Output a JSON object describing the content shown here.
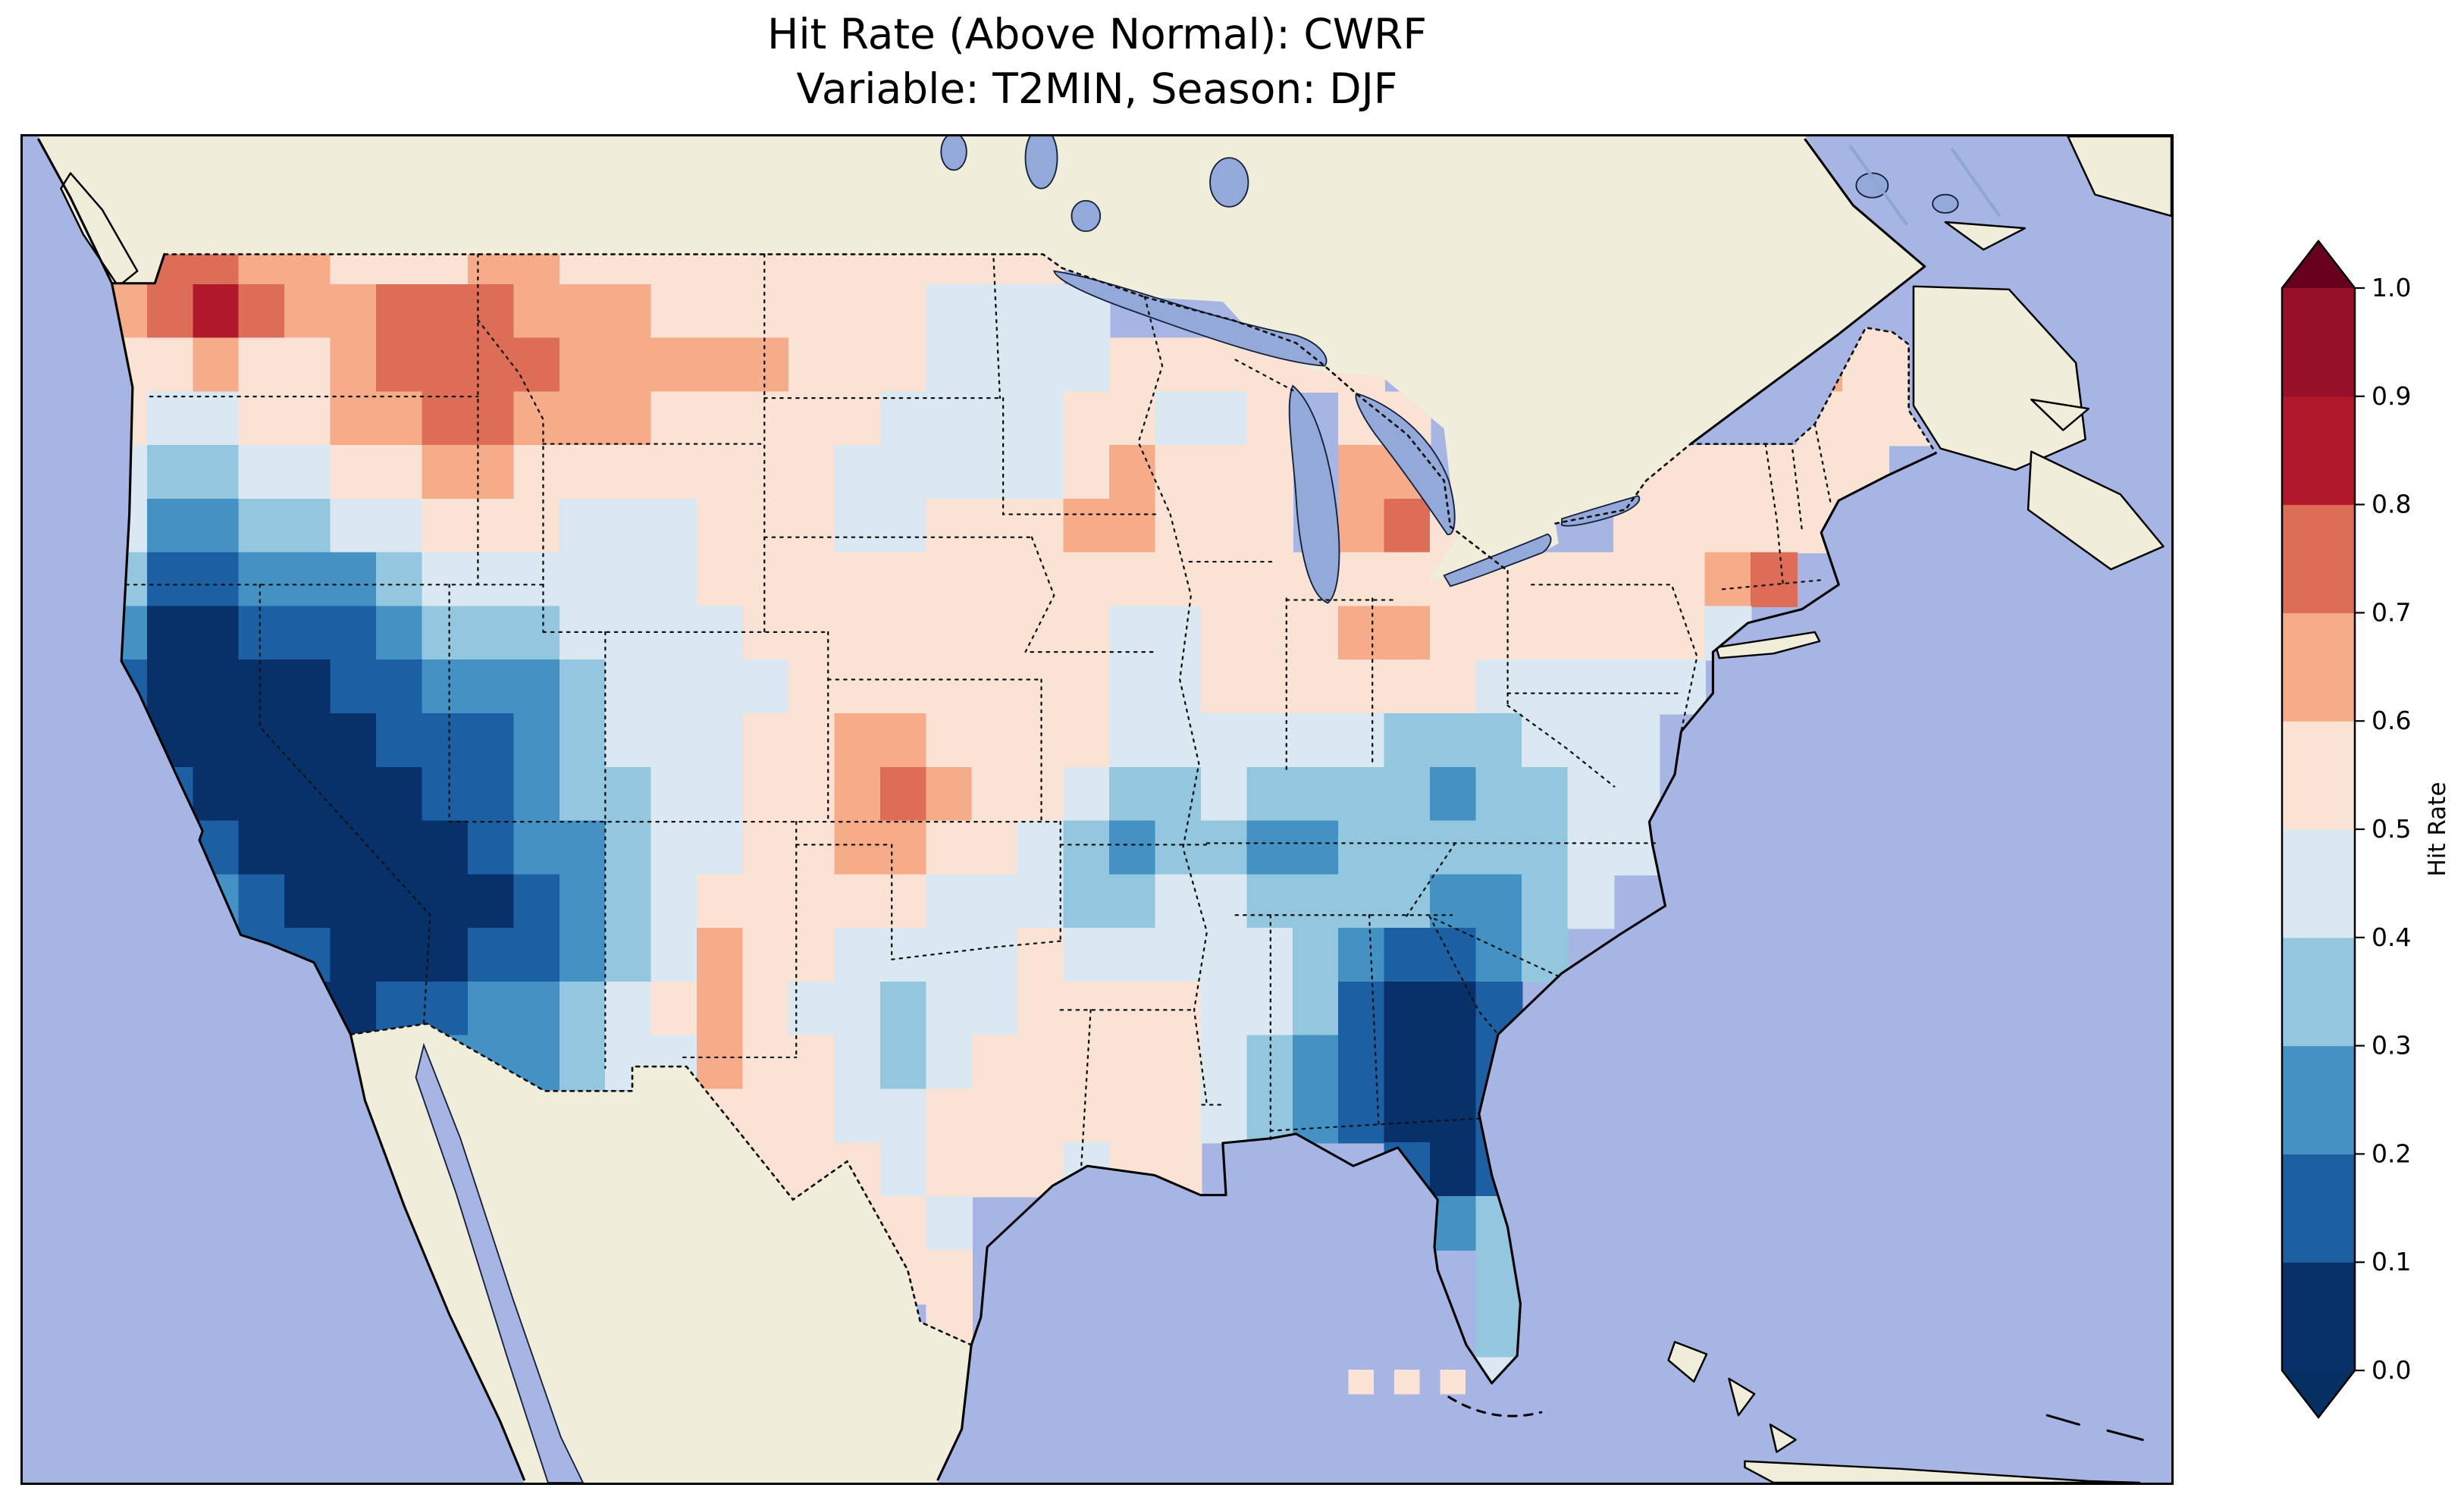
{
  "title": {
    "line1": "Hit Rate (Above Normal): CWRF",
    "line2": "Variable: T2MIN, Season: DJF"
  },
  "colorbar": {
    "label": "Hit Rate",
    "tick_labels": [
      "0.0",
      "0.1",
      "0.2",
      "0.3",
      "0.4",
      "0.5",
      "0.6",
      "0.7",
      "0.8",
      "0.9",
      "1.0"
    ],
    "bin_colors": [
      "#083169",
      "#1d5fa3",
      "#4392c3",
      "#93c6df",
      "#d9e8f1",
      "#fae3d4",
      "#f6ac88",
      "#dc6e57",
      "#b2182b",
      "#97102a"
    ],
    "under_color": "#053061",
    "over_color": "#67001f"
  },
  "map_colors": {
    "ocean": "#a6b5e3",
    "land": "#f0eedb",
    "lake": "#93a9da"
  },
  "chart_data": {
    "type": "heatmap",
    "title": "Hit Rate (Above Normal): CWRF",
    "subtitle": "Variable: T2MIN, Season: DJF",
    "metric": "Hit Rate (Above Normal)",
    "model": "CWRF",
    "variable": "T2MIN",
    "season": "DJF",
    "legend_label": "Hit Rate",
    "value_range": [
      0.0,
      1.0
    ],
    "tick_step": 0.1,
    "colormap": "RdBu_r, binned by 0.1 from 0.0 to 1.0, extended triangles at both ends",
    "region": "Conterminous United States (coarse gridded field over CONUS; ocean and non-US land masked)",
    "grid": {
      "encoding": "Each row string is one latitude band (north to south). Each char is one grid cell (west to east). Digit d = hit-rate bin [d/10, d/10+0.1). '.' = outside CONUS / masked.",
      "lon_start": -125.0,
      "lon_step": 1.45,
      "lat_start": 49.5,
      "lat_step": -1.136,
      "rows": [
        "777665556655555555555................555",
        "6787667776665555554444...............555",
        "5565567777666665554444555555.........655",
        "54455667766655555444455445.55........555",
        "43344556655555554444456555.66....555555.",
        "42233445554445554455566555.675...55555..",
        "3112223444444555555555555555555555567...",
        "200111233344445555555544555665555554....",
        "10000112223444455555554455555544444.....",
        "1000001112344455665555444444333444......",
        "2100000112334455676554334333323344......",
        "..10000012234455665543233223333344......",
        "..2100000123455555444334433332234.......",
        "..211000112346554444544444321123........",
        "..10001122345654434455554431001.........",
        ".....11222344655434555554321001.........",
        "............5555445555554321001.........",
        ".............55554555455....101.........",
        "...............5554..........23.........",
        ".................55...........33........",
        "..................5...........34........",
        "..............................4........."
      ]
    },
    "stray_cells": [
      {
        "row": 21,
        "col": 27,
        "bin": 5
      },
      {
        "row": 21,
        "col": 28,
        "bin": 5
      },
      {
        "row": 21,
        "col": 29,
        "bin": 5
      }
    ]
  }
}
